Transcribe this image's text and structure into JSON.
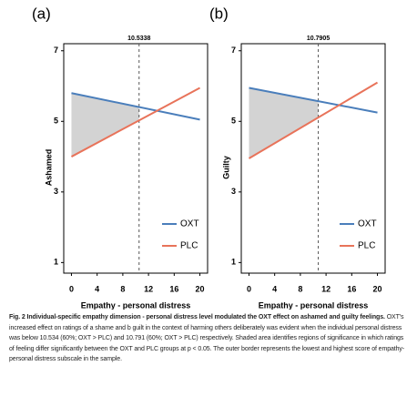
{
  "chart_data": [
    {
      "type": "line",
      "label": "(a)",
      "ylabel": "Ashamed",
      "xlabel": "Empathy - personal distress",
      "threshold": 10.5338,
      "shade_color": "#d3d3d3",
      "xlim": [
        -1.2,
        21.2
      ],
      "ylim": [
        0.7,
        7.2
      ],
      "xticks": [
        0,
        4,
        8,
        12,
        16,
        20
      ],
      "yticks": [
        1,
        3,
        5,
        7
      ],
      "legend": "bottom-right",
      "x": [
        0,
        20
      ],
      "series": [
        {
          "name": "OXT",
          "color": "#4a7ebb",
          "values": [
            5.8,
            5.05
          ]
        },
        {
          "name": "PLC",
          "color": "#e8735a",
          "values": [
            4.0,
            5.95
          ]
        }
      ]
    },
    {
      "type": "line",
      "label": "(b)",
      "ylabel": "Guilty",
      "xlabel": "Empathy - personal distress",
      "threshold": 10.7905,
      "shade_color": "#d3d3d3",
      "xlim": [
        -1.2,
        21.2
      ],
      "ylim": [
        0.7,
        7.2
      ],
      "xticks": [
        0,
        4,
        8,
        12,
        16,
        20
      ],
      "yticks": [
        1,
        3,
        5,
        7
      ],
      "legend": "bottom-right",
      "x": [
        0,
        20
      ],
      "series": [
        {
          "name": "OXT",
          "color": "#4a7ebb",
          "values": [
            5.95,
            5.25
          ]
        },
        {
          "name": "PLC",
          "color": "#e8735a",
          "values": [
            3.95,
            6.1
          ]
        }
      ]
    }
  ],
  "caption": {
    "title": "Fig. 2  Individual-specific empathy dimension - personal distress level modulated the OXT effect on ashamed and guilty feelings.",
    "text": "OXT's increased effect on ratings of a shame and b guilt in the context of harming others deliberately was evident when the individual personal distress was below 10.534 (60%; OXT > PLC) and 10.791 (60%; OXT > PLC) respectively. Shaded area identifies regions of significance in which ratings of feeling differ significantly between the OXT and PLC groups at p < 0.05. The outer border represents the lowest and highest score of empathy-personal distress subscale in the sample."
  }
}
